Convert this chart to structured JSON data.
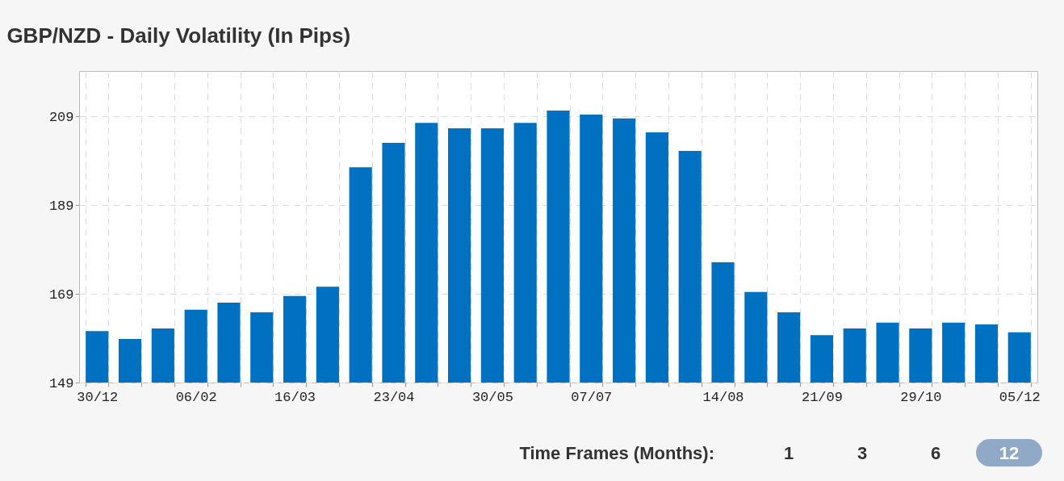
{
  "chart_data": {
    "type": "bar",
    "title": "GBP/NZD - Daily Volatility (In Pips)",
    "categories": [
      "30/12",
      null,
      null,
      "06/02",
      null,
      null,
      "16/03",
      null,
      null,
      "23/04",
      null,
      null,
      "30/05",
      null,
      null,
      "07/07",
      null,
      null,
      null,
      "14/08",
      null,
      null,
      "21/09",
      null,
      null,
      "29/10",
      null,
      null,
      "05/12"
    ],
    "values": [
      160.6,
      158.8,
      161.2,
      165.4,
      167,
      164.8,
      168.5,
      170.6,
      197.5,
      203,
      207.5,
      206.3,
      206.3,
      207.5,
      210.3,
      209.4,
      208.5,
      205.4,
      201.2,
      176.1,
      169.4,
      164.8,
      159.7,
      161.2,
      162.5,
      161.2,
      162.5,
      162.1,
      160.3
    ],
    "color": "#0070c0",
    "ylim": [
      149,
      219.2
    ],
    "yticks": [
      149,
      169,
      189,
      209
    ],
    "grid": true,
    "annotations": [
      "Time Frames (Months):",
      "1",
      "3",
      "6",
      "12"
    ]
  }
}
